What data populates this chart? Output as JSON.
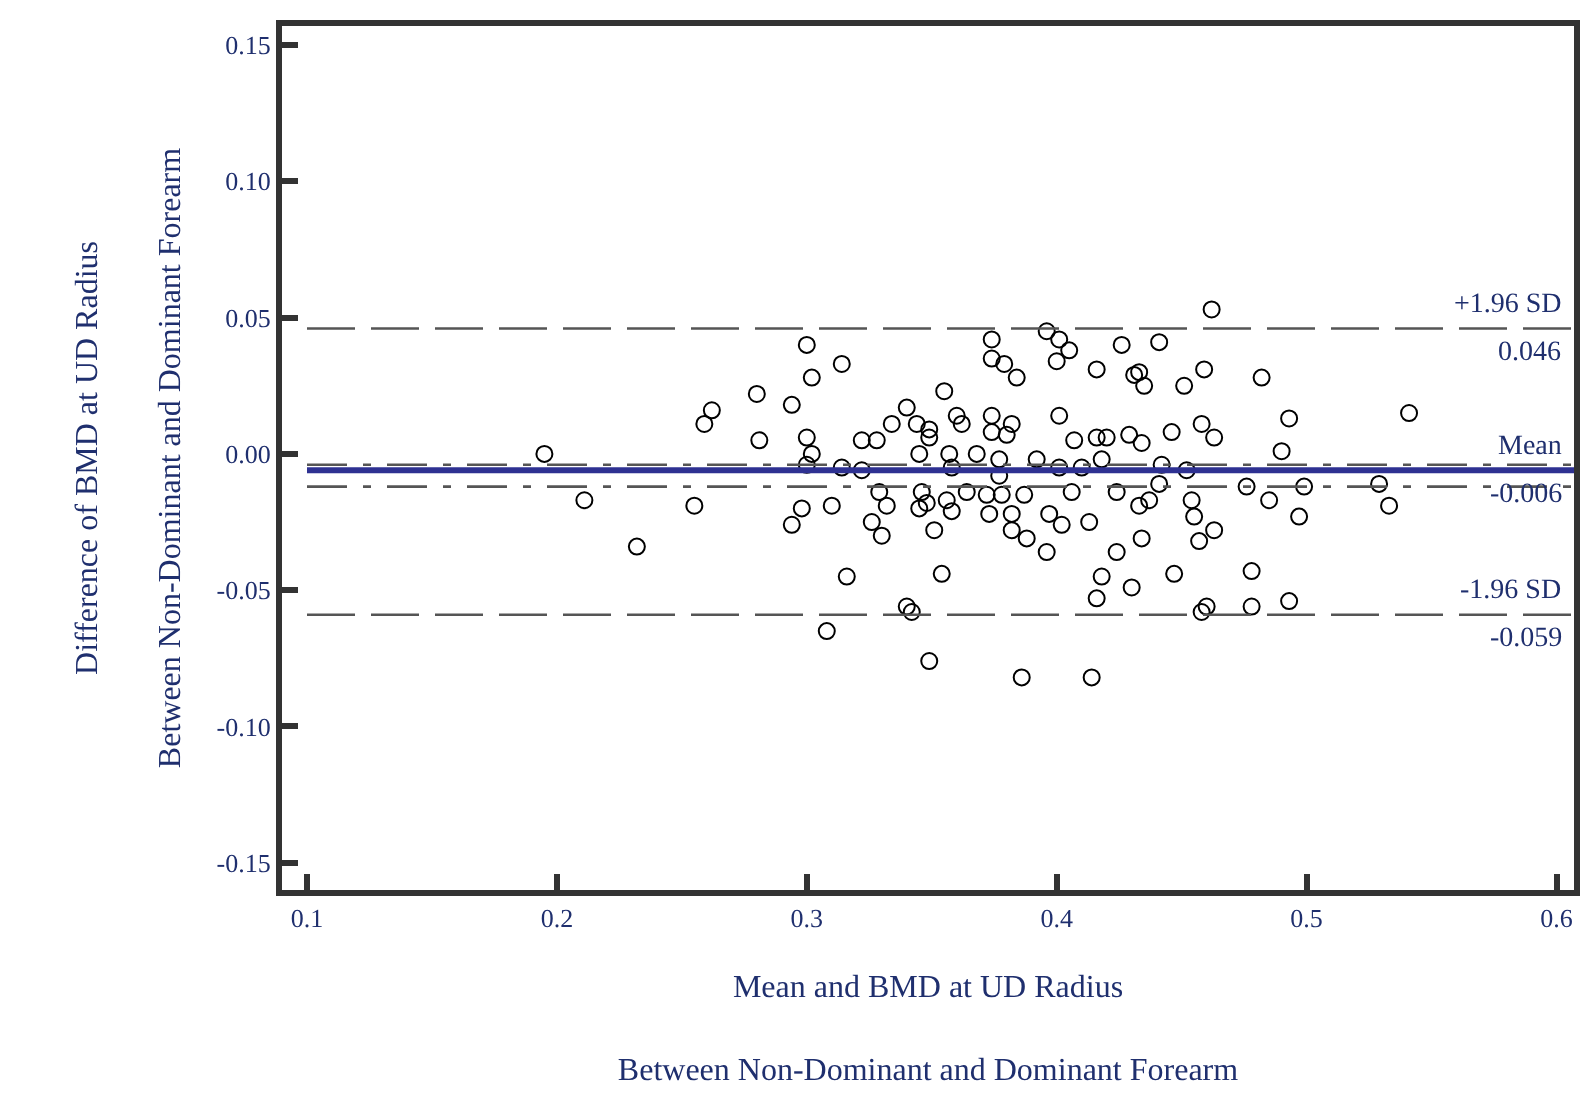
{
  "chart_data": {
    "type": "scatter",
    "xlabel": "Mean and BMD at UD Radius\nBetween Non-Dominant and Dominant Forearm",
    "ylabel": "Difference of BMD at UD Radius\nBetween Non-Dominant and Dominant Forearm",
    "x": [
      0.195,
      0.211,
      0.232,
      0.255,
      0.259,
      0.262,
      0.3,
      0.314,
      0.302,
      0.28,
      0.294,
      0.281,
      0.3,
      0.302,
      0.3,
      0.314,
      0.322,
      0.328,
      0.322,
      0.329,
      0.332,
      0.31,
      0.298,
      0.294,
      0.326,
      0.33,
      0.316,
      0.308,
      0.34,
      0.342,
      0.349,
      0.334,
      0.34,
      0.344,
      0.349,
      0.349,
      0.355,
      0.36,
      0.362,
      0.345,
      0.357,
      0.358,
      0.346,
      0.348,
      0.345,
      0.356,
      0.358,
      0.351,
      0.354,
      0.374,
      0.374,
      0.379,
      0.384,
      0.396,
      0.401,
      0.405,
      0.4,
      0.416,
      0.426,
      0.431,
      0.401,
      0.374,
      0.382,
      0.38,
      0.374,
      0.407,
      0.416,
      0.42,
      0.429,
      0.368,
      0.377,
      0.377,
      0.392,
      0.401,
      0.41,
      0.418,
      0.364,
      0.372,
      0.378,
      0.387,
      0.373,
      0.382,
      0.397,
      0.402,
      0.382,
      0.388,
      0.396,
      0.406,
      0.413,
      0.424,
      0.424,
      0.418,
      0.416,
      0.43,
      0.386,
      0.414,
      0.462,
      0.441,
      0.433,
      0.435,
      0.451,
      0.459,
      0.482,
      0.493,
      0.49,
      0.541,
      0.434,
      0.446,
      0.458,
      0.463,
      0.442,
      0.452,
      0.441,
      0.476,
      0.499,
      0.529,
      0.533,
      0.485,
      0.497,
      0.433,
      0.437,
      0.454,
      0.455,
      0.463,
      0.457,
      0.434,
      0.447,
      0.478,
      0.493,
      0.478,
      0.46,
      0.458
    ],
    "values": [
      0.0,
      -0.017,
      -0.034,
      -0.019,
      0.011,
      0.016,
      0.04,
      0.033,
      0.028,
      0.022,
      0.018,
      0.005,
      0.006,
      0.0,
      -0.004,
      -0.005,
      0.005,
      0.005,
      -0.006,
      -0.014,
      -0.019,
      -0.019,
      -0.02,
      -0.026,
      -0.025,
      -0.03,
      -0.045,
      -0.065,
      -0.056,
      -0.058,
      -0.076,
      0.011,
      0.017,
      0.011,
      0.009,
      0.006,
      0.023,
      0.014,
      0.011,
      0.0,
      0.0,
      -0.005,
      -0.014,
      -0.018,
      -0.02,
      -0.017,
      -0.021,
      -0.028,
      -0.044,
      0.042,
      0.035,
      0.033,
      0.028,
      0.045,
      0.042,
      0.038,
      0.034,
      0.031,
      0.04,
      0.029,
      0.014,
      0.014,
      0.011,
      0.007,
      0.008,
      0.005,
      0.006,
      0.006,
      0.007,
      0.0,
      -0.002,
      -0.008,
      -0.002,
      -0.005,
      -0.005,
      -0.002,
      -0.014,
      -0.015,
      -0.015,
      -0.015,
      -0.022,
      -0.022,
      -0.022,
      -0.026,
      -0.028,
      -0.031,
      -0.036,
      -0.014,
      -0.025,
      -0.014,
      -0.036,
      -0.045,
      -0.053,
      -0.049,
      -0.082,
      -0.082,
      0.053,
      0.041,
      0.03,
      0.025,
      0.025,
      0.031,
      0.028,
      0.013,
      0.001,
      0.015,
      0.004,
      0.008,
      0.011,
      0.006,
      -0.004,
      -0.006,
      -0.011,
      -0.012,
      -0.012,
      -0.011,
      -0.019,
      -0.017,
      -0.023,
      -0.019,
      -0.017,
      -0.017,
      -0.023,
      -0.028,
      -0.032,
      -0.031,
      -0.044,
      -0.043,
      -0.054,
      -0.056,
      -0.056,
      -0.058
    ],
    "color": "#000000",
    "marker": "circle",
    "xlim": [
      0.09,
      0.607
    ],
    "ylim": [
      -0.16,
      0.157
    ],
    "xticks": [
      0.1,
      0.2,
      0.3,
      0.4,
      0.5,
      0.6
    ],
    "yticks": [
      0.15,
      {
        "value": 0.1,
        "label": "0.10"
      },
      0.05,
      {
        "value": 0,
        "label": "0.00"
      },
      -0.05,
      {
        "value": -0.1,
        "label": "-0.10"
      },
      -0.15
    ],
    "ref_lines": [
      {
        "axis": "y",
        "value": 0.046,
        "label": "+1.96 SD",
        "color": "#555555",
        "line_style": "dashed"
      },
      {
        "axis": "y",
        "value": -0.006,
        "label": "Mean",
        "color": "#2e3192",
        "line_style": "solid"
      },
      {
        "axis": "y",
        "value": -0.004,
        "color": "#555555",
        "line_style": "dashdot"
      },
      {
        "axis": "y",
        "value": -0.012,
        "color": "#555555",
        "line_style": "dashdot"
      },
      {
        "axis": "y",
        "value": -0.059,
        "label": "-1.96 SD",
        "color": "#555555",
        "line_style": "dashed"
      }
    ],
    "annotations": [
      {
        "text": "0.046",
        "y": 0.046
      },
      {
        "text": "-0.006",
        "y": -0.006
      },
      {
        "text": "-0.059",
        "y": -0.059
      }
    ],
    "grid": false,
    "legend": false
  }
}
